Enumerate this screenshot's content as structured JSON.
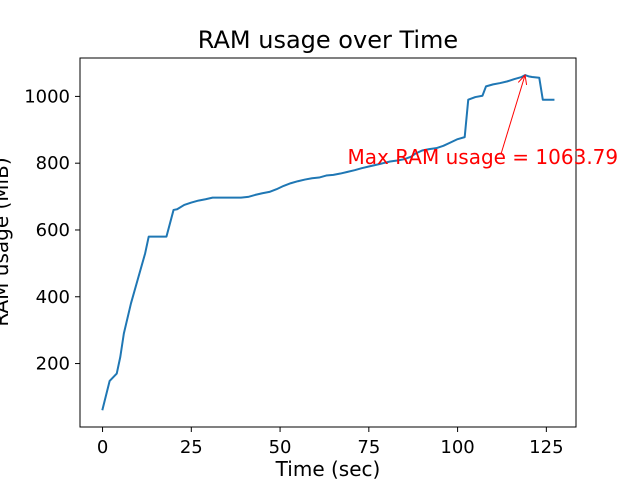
{
  "chart_data": {
    "type": "line",
    "title": "RAM usage over Time",
    "xlabel": "Time (sec)",
    "ylabel": "RAM usage (MiB)",
    "xlim": [
      -6.35,
      133.35
    ],
    "ylim": [
      10,
      1115
    ],
    "xticks": [
      0,
      25,
      50,
      75,
      100,
      125
    ],
    "yticks": [
      200,
      400,
      600,
      800,
      1000
    ],
    "grid": false,
    "legend": "none",
    "line_color": "#1f77b4",
    "series": [
      {
        "x": [
          0,
          2,
          4,
          5,
          6,
          8,
          10,
          12,
          13,
          14,
          16,
          18,
          20,
          21,
          23,
          25,
          27,
          29,
          31,
          33,
          35,
          37,
          39,
          41,
          43,
          45,
          47,
          49,
          51,
          53,
          55,
          57,
          59,
          61,
          63,
          65,
          67,
          69,
          71,
          73,
          75,
          77,
          79,
          81,
          83,
          85,
          87,
          88,
          90,
          92,
          94,
          96,
          98,
          100,
          102,
          103,
          105,
          107,
          108,
          110,
          112,
          114,
          116,
          118,
          119,
          120,
          121,
          123,
          124,
          126,
          127
        ],
        "y": [
          63,
          148,
          170,
          220,
          290,
          380,
          455,
          530,
          580,
          580,
          580,
          580,
          660,
          662,
          675,
          682,
          688,
          692,
          697,
          697,
          697,
          697,
          697,
          699,
          705,
          710,
          714,
          722,
          732,
          740,
          746,
          751,
          755,
          757,
          763,
          765,
          769,
          774,
          779,
          785,
          790,
          795,
          800,
          805,
          808,
          812,
          820,
          828,
          838,
          842,
          845,
          852,
          862,
          872,
          878,
          990,
          998,
          1002,
          1030,
          1036,
          1040,
          1045,
          1052,
          1058,
          1063.79,
          1060,
          1058,
          1056,
          990,
          990,
          990
        ]
      }
    ],
    "annotation": {
      "text": "Max RAM usage = 1063.79",
      "x": 119,
      "y": 1063.79,
      "text_x": 69,
      "text_y": 780,
      "color": "#ff0000"
    }
  }
}
